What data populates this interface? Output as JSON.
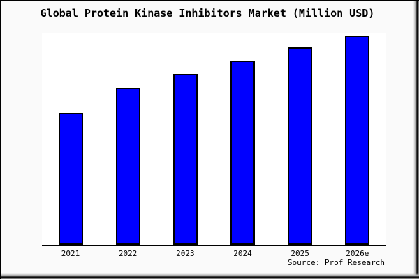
{
  "chart_data": {
    "type": "bar",
    "title": "Global Protein Kinase Inhibitors Market (Million USD)",
    "categories": [
      "2021",
      "2022",
      "2023",
      "2024",
      "2025",
      "2026e"
    ],
    "values": [
      189,
      225,
      245,
      264,
      283,
      300
    ],
    "values_note": "no y-axis scale or tick labels shown in image; values are relative bar heights in pixels",
    "xlabel": "",
    "ylabel": "",
    "ylim": [
      0,
      303
    ],
    "grid": false,
    "legend": false,
    "y_axis_visible": false,
    "bar_color": "#0000ff",
    "bar_border_color": "#000000",
    "axis_color": "#000000",
    "plot_background": "#ffffff",
    "page_background": "#fafafa",
    "annotations": [
      "Source: Prof Research"
    ]
  }
}
